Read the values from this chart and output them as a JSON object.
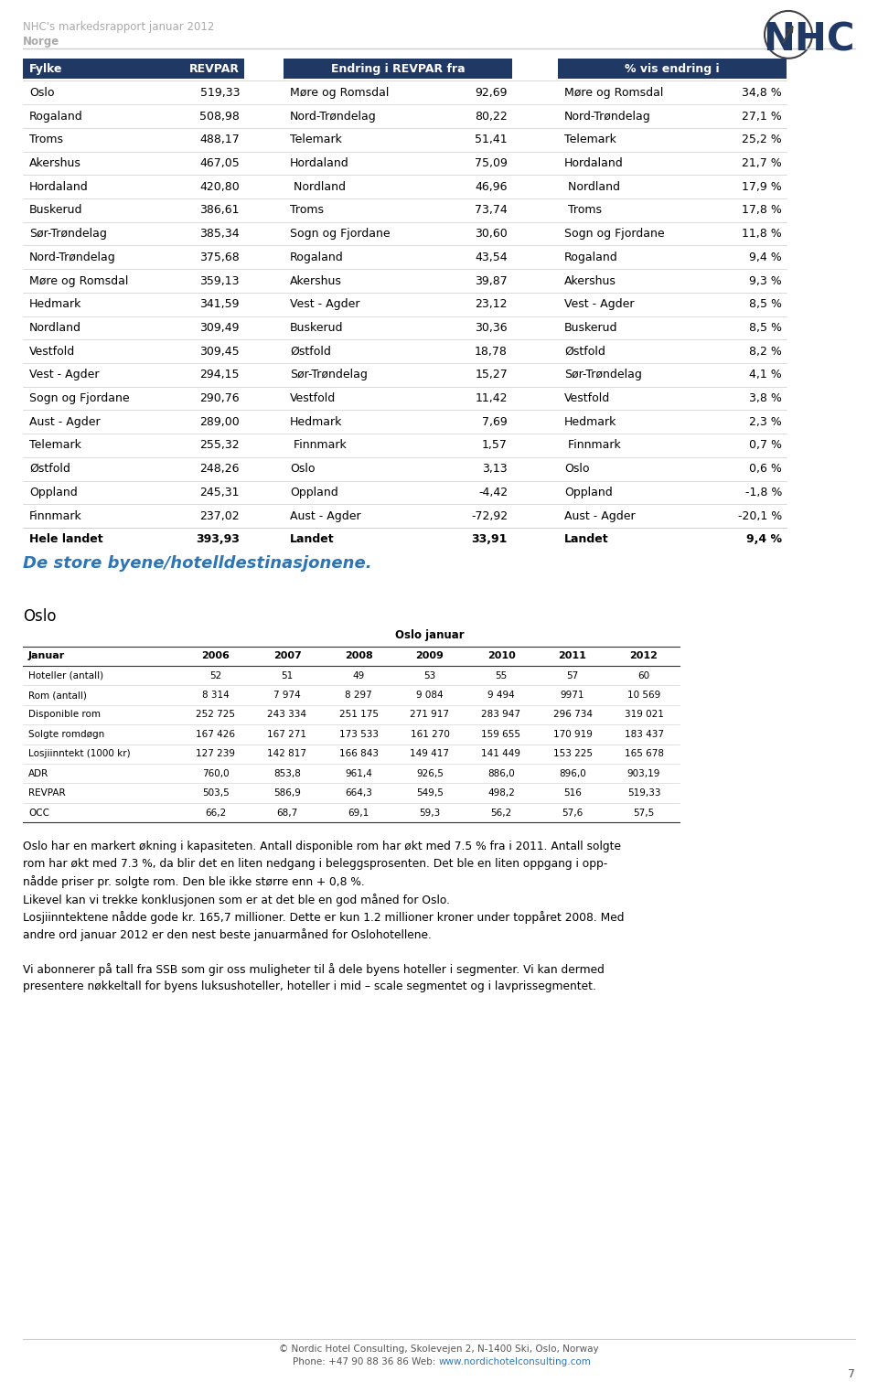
{
  "header_line1": "NHC's markedsrapport januar 2012",
  "header_line2": "Norge",
  "page_number": "7",
  "dark_blue": "#1F3864",
  "teal_blue": "#2E75B6",
  "table1_rows": [
    [
      "Oslo",
      "519,33"
    ],
    [
      "Rogaland",
      "508,98"
    ],
    [
      "Troms",
      "488,17"
    ],
    [
      "Akershus",
      "467,05"
    ],
    [
      "Hordaland",
      "420,80"
    ],
    [
      "Buskerud",
      "386,61"
    ],
    [
      "Sør-Trøndelag",
      "385,34"
    ],
    [
      "Nord-Trøndelag",
      "375,68"
    ],
    [
      "Møre og Romsdal",
      "359,13"
    ],
    [
      "Hedmark",
      "341,59"
    ],
    [
      "Nordland",
      "309,49"
    ],
    [
      "Vestfold",
      "309,45"
    ],
    [
      "Vest - Agder",
      "294,15"
    ],
    [
      "Sogn og Fjordane",
      "290,76"
    ],
    [
      "Aust - Agder",
      "289,00"
    ],
    [
      "Telemark",
      "255,32"
    ],
    [
      "Østfold",
      "248,26"
    ],
    [
      "Oppland",
      "245,31"
    ],
    [
      "Finnmark",
      "237,02"
    ],
    [
      "Hele landet",
      "393,93"
    ]
  ],
  "table2_rows": [
    [
      "Møre og Romsdal",
      "92,69"
    ],
    [
      "Nord-Trøndelag",
      "80,22"
    ],
    [
      "Telemark",
      "51,41"
    ],
    [
      "Hordaland",
      "75,09"
    ],
    [
      " Nordland",
      "46,96"
    ],
    [
      "Troms",
      "73,74"
    ],
    [
      "Sogn og Fjordane",
      "30,60"
    ],
    [
      "Rogaland",
      "43,54"
    ],
    [
      "Akershus",
      "39,87"
    ],
    [
      "Vest - Agder",
      "23,12"
    ],
    [
      "Buskerud",
      "30,36"
    ],
    [
      "Østfold",
      "18,78"
    ],
    [
      "Sør-Trøndelag",
      "15,27"
    ],
    [
      "Vestfold",
      "11,42"
    ],
    [
      "Hedmark",
      "7,69"
    ],
    [
      " Finnmark",
      "1,57"
    ],
    [
      "Oslo",
      "3,13"
    ],
    [
      "Oppland",
      "-4,42"
    ],
    [
      "Aust - Agder",
      "-72,92"
    ],
    [
      "Landet",
      "33,91"
    ]
  ],
  "table3_rows": [
    [
      "Møre og Romsdal",
      "34,8 %"
    ],
    [
      "Nord-Trøndelag",
      "27,1 %"
    ],
    [
      "Telemark",
      "25,2 %"
    ],
    [
      "Hordaland",
      "21,7 %"
    ],
    [
      " Nordland",
      "17,9 %"
    ],
    [
      " Troms",
      "17,8 %"
    ],
    [
      "Sogn og Fjordane",
      "11,8 %"
    ],
    [
      "Rogaland",
      "9,4 %"
    ],
    [
      "Akershus",
      "9,3 %"
    ],
    [
      "Vest - Agder",
      "8,5 %"
    ],
    [
      "Buskerud",
      "8,5 %"
    ],
    [
      "Østfold",
      "8,2 %"
    ],
    [
      "Sør-Trøndelag",
      "4,1 %"
    ],
    [
      "Vestfold",
      "3,8 %"
    ],
    [
      "Hedmark",
      "2,3 %"
    ],
    [
      " Finnmark",
      "0,7 %"
    ],
    [
      "Oslo",
      "0,6 %"
    ],
    [
      "Oppland",
      "-1,8 %"
    ],
    [
      "Aust - Agder",
      "-20,1 %"
    ],
    [
      "Landet",
      "9,4 %"
    ]
  ],
  "section_title": "De store byene/hotelldestinasjonene.",
  "section_subtitle": "Oslo",
  "oslo_table_headers": [
    "Januar",
    "2006",
    "2007",
    "2008",
    "2009",
    "2010",
    "2011",
    "2012"
  ],
  "oslo_table_col_header": "Oslo januar",
  "oslo_table_rows": [
    [
      "Hoteller (antall)",
      "52",
      "51",
      "49",
      "53",
      "55",
      "57",
      "60"
    ],
    [
      "Rom (antall)",
      "8 314",
      "7 974",
      "8 297",
      "9 084",
      "9 494",
      "9971",
      "10 569"
    ],
    [
      "Disponible rom",
      "252 725",
      "243 334",
      "251 175",
      "271 917",
      "283 947",
      "296 734",
      "319 021"
    ],
    [
      "Solgte romdøgn",
      "167 426",
      "167 271",
      "173 533",
      "161 270",
      "159 655",
      "170 919",
      "183 437"
    ],
    [
      "Losjiinntekt (1000 kr)",
      "127 239",
      "142 817",
      "166 843",
      "149 417",
      "141 449",
      "153 225",
      "165 678"
    ],
    [
      "ADR",
      "760,0",
      "853,8",
      "961,4",
      "926,5",
      "886,0",
      "896,0",
      "903,19"
    ],
    [
      "REVPAR",
      "503,5",
      "586,9",
      "664,3",
      "549,5",
      "498,2",
      "516",
      "519,33"
    ],
    [
      "OCC",
      "66,2",
      "68,7",
      "69,1",
      "59,3",
      "56,2",
      "57,6",
      "57,5"
    ]
  ],
  "body_text": [
    "Oslo har en markert økning i kapasiteten. Antall disponible rom har økt med 7.5 % fra i 2011. Antall solgte",
    "rom har økt med 7.3 %, da blir det en liten nedgang i beleggsprosenten. Det ble en liten oppgang i opp-",
    "nådde priser pr. solgte rom. Den ble ikke større enn + 0,8 %.",
    "Likevel kan vi trekke konklusjonen som er at det ble en god måned for Oslo.",
    "Losjiinntektene nådde gode kr. 165,7 millioner. Dette er kun 1.2 millioner kroner under toppåret 2008. Med",
    "andre ord januar 2012 er den nest beste januarmåned for Oslohotellene.",
    "",
    "Vi abonnerer på tall fra SSB som gir oss muligheter til å dele byens hoteller i segmenter. Vi kan dermed",
    "presentere nøkkeltall for byens luksushoteller, hoteller i mid – scale segmentet og i lavprissegmentet."
  ],
  "footer_text": "© Nordic Hotel Consulting, Skolevejen 2, N-1400 Ski, Oslo, Norway",
  "footer_pre": "Phone: +47 90 88 36 86 Web: ",
  "footer_link": "www.nordichotelconsulting.com",
  "bg_color": "#ffffff",
  "header_bg": "#1F3864",
  "header_text_color": "#ffffff"
}
